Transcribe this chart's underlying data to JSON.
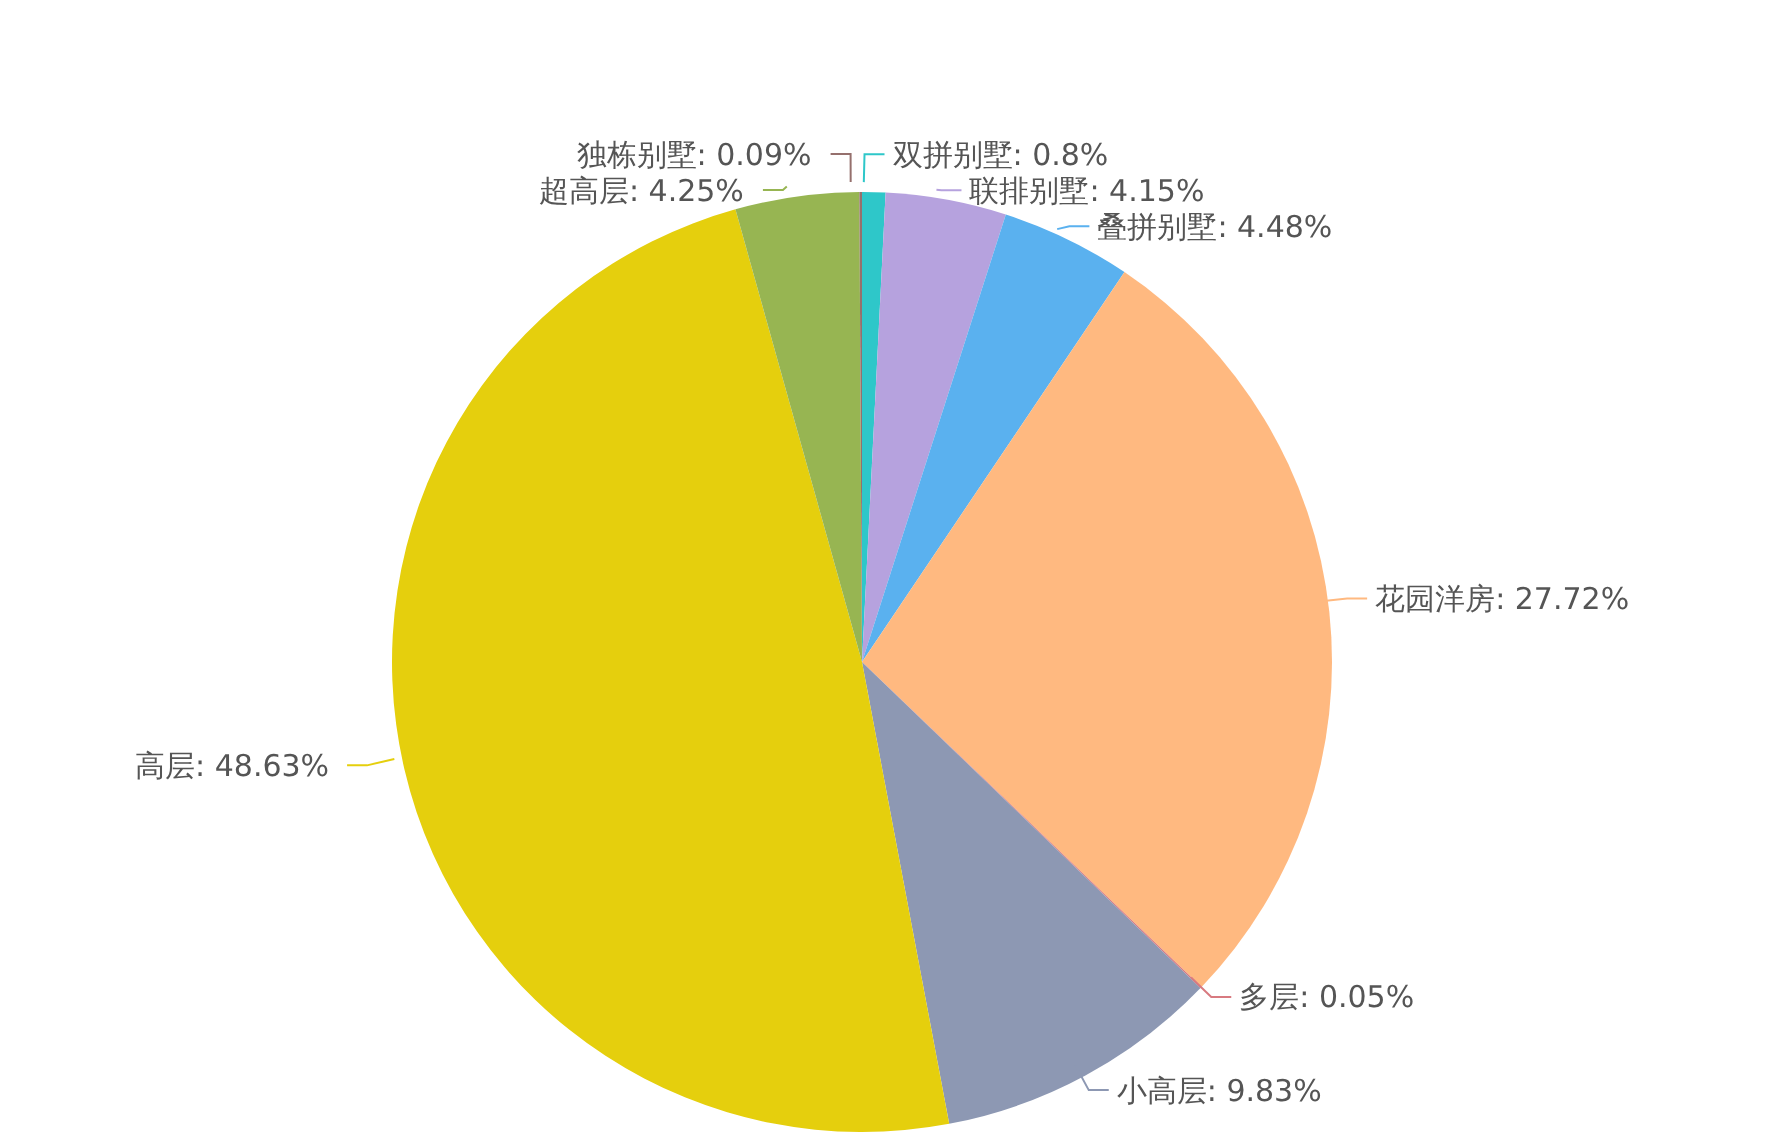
{
  "chart_data": {
    "type": "pie",
    "categories": [
      "双拼别墅",
      "联排别墅",
      "叠拼别墅",
      "花园洋房",
      "多层",
      "小高层",
      "高层",
      "超高层",
      "独栋别墅"
    ],
    "values": [
      0.8,
      4.15,
      4.48,
      27.72,
      0.05,
      9.83,
      48.63,
      4.25,
      0.09
    ],
    "value_labels": [
      ": 0.8%",
      ": 4.15%",
      ": 4.48%",
      ": 27.72%",
      ": 0.05%",
      ": 9.83%",
      ": 48.63%",
      ": 4.25%",
      ": 0.09%"
    ],
    "colors": [
      "#2ec7c9",
      "#b6a2de",
      "#5ab1ef",
      "#ffb980",
      "#d87a80",
      "#8d98b3",
      "#e5cf0d",
      "#97b552",
      "#95706d"
    ],
    "legend": false
  }
}
